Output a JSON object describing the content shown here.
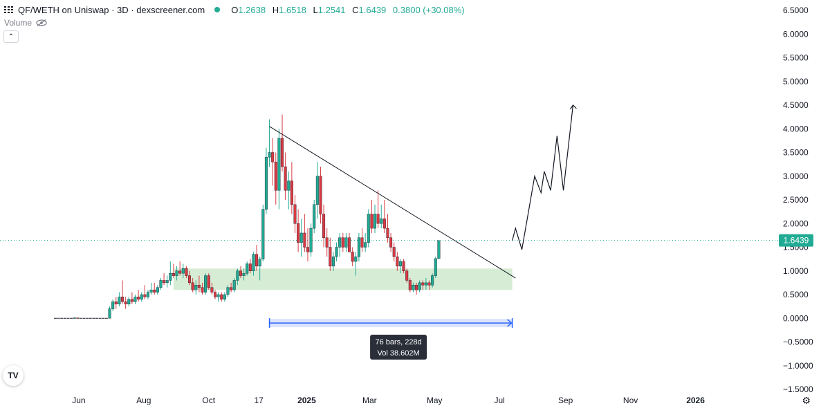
{
  "header": {
    "title": "QF/WETH on Uniswap · 3D · dexscreener.com",
    "ohlc": {
      "o_label": "O",
      "o": "1.2638",
      "h_label": "H",
      "h": "1.6518",
      "l_label": "L",
      "l": "1.2541",
      "c_label": "C",
      "c": "1.6439",
      "change": "0.3800 (+30.08%)"
    }
  },
  "indicator": {
    "volume_label": "Volume"
  },
  "logo": {
    "text": "TV"
  },
  "colors": {
    "up": "#22ab94",
    "down": "#d93a43",
    "zone": "#d6ecd4",
    "range_fill": "#dbe4fc",
    "range_line": "#2962ff",
    "price_tag": "#22ab94",
    "tooltip_bg": "#2a2e39"
  },
  "chart_data": {
    "type": "candlestick",
    "title": "QF/WETH on Uniswap · 3D · dexscreener.com",
    "ylim": [
      -1.5,
      6.5
    ],
    "y_ticks": [
      "6.5000",
      "6.0000",
      "5.5000",
      "5.0000",
      "4.5000",
      "4.0000",
      "3.5000",
      "3.0000",
      "2.5000",
      "2.0000",
      "1.5000",
      "1.0000",
      "0.5000",
      "0.0000",
      "−0.5000",
      "−1.0000",
      "−1.5000"
    ],
    "x_ticks": [
      "Jun",
      "Aug",
      "Oct",
      "17",
      "2025",
      "Mar",
      "May",
      "Jul",
      "Sep",
      "Nov",
      "2026"
    ],
    "x_tick_dates": [
      "2024-06-01",
      "2024-08-01",
      "2024-10-01",
      "2024-11-17",
      "2025-01-01",
      "2025-03-01",
      "2025-05-01",
      "2025-07-01",
      "2025-09-01",
      "2025-11-01",
      "2026-01-01"
    ],
    "last_price": "1.6439",
    "candles": [
      [
        0.0,
        0.0,
        0.0,
        0.0
      ],
      [
        0.0,
        0.0,
        0.0,
        0.0
      ],
      [
        0.0,
        0.0,
        0.0,
        0.0
      ],
      [
        0.0,
        0.0,
        0.0,
        0.0
      ],
      [
        0.0,
        0.0,
        0.0,
        0.0
      ],
      [
        0.0,
        0.0,
        0.0,
        0.0
      ],
      [
        0.0,
        0.02,
        0.0,
        0.01
      ],
      [
        0.01,
        0.0,
        0.0,
        0.0
      ],
      [
        0.0,
        0.0,
        0.0,
        0.0
      ],
      [
        0.0,
        0.0,
        0.0,
        0.0
      ],
      [
        0.0,
        0.0,
        0.0,
        0.0
      ],
      [
        0.0,
        0.0,
        0.0,
        0.0
      ],
      [
        0.0,
        0.0,
        0.0,
        0.0
      ],
      [
        0.0,
        0.0,
        0.0,
        0.0
      ],
      [
        0.0,
        0.0,
        0.0,
        0.0
      ],
      [
        0.0,
        0.0,
        0.0,
        0.0
      ],
      [
        0.0,
        0.0,
        0.0,
        0.0
      ],
      [
        0.0,
        0.25,
        0.0,
        0.2
      ],
      [
        0.2,
        0.4,
        0.15,
        0.35
      ],
      [
        0.35,
        0.45,
        0.2,
        0.3
      ],
      [
        0.3,
        0.55,
        0.25,
        0.45
      ],
      [
        0.45,
        0.8,
        0.3,
        0.35
      ],
      [
        0.35,
        0.45,
        0.2,
        0.3
      ],
      [
        0.3,
        0.45,
        0.25,
        0.4
      ],
      [
        0.4,
        0.55,
        0.3,
        0.35
      ],
      [
        0.35,
        0.5,
        0.3,
        0.45
      ],
      [
        0.45,
        0.6,
        0.35,
        0.4
      ],
      [
        0.4,
        0.55,
        0.35,
        0.5
      ],
      [
        0.5,
        0.7,
        0.4,
        0.45
      ],
      [
        0.45,
        0.6,
        0.4,
        0.55
      ],
      [
        0.55,
        0.75,
        0.5,
        0.6
      ],
      [
        0.6,
        0.75,
        0.5,
        0.55
      ],
      [
        0.55,
        0.7,
        0.5,
        0.65
      ],
      [
        0.65,
        0.85,
        0.6,
        0.8
      ],
      [
        0.8,
        0.95,
        0.7,
        0.75
      ],
      [
        0.75,
        0.9,
        0.65,
        0.8
      ],
      [
        0.8,
        1.2,
        0.7,
        0.95
      ],
      [
        0.95,
        1.15,
        0.85,
        0.9
      ],
      [
        0.9,
        1.1,
        0.8,
        1.0
      ],
      [
        1.0,
        1.2,
        0.9,
        0.95
      ],
      [
        0.95,
        1.15,
        0.85,
        1.05
      ],
      [
        1.05,
        1.1,
        0.85,
        0.9
      ],
      [
        0.9,
        1.0,
        0.7,
        0.75
      ],
      [
        0.75,
        0.85,
        0.55,
        0.6
      ],
      [
        0.6,
        0.8,
        0.5,
        0.7
      ],
      [
        0.7,
        0.9,
        0.55,
        0.65
      ],
      [
        0.65,
        0.75,
        0.5,
        0.55
      ],
      [
        0.55,
        0.95,
        0.5,
        0.9
      ],
      [
        0.9,
        0.95,
        0.6,
        0.65
      ],
      [
        0.65,
        0.75,
        0.5,
        0.55
      ],
      [
        0.55,
        0.6,
        0.4,
        0.45
      ],
      [
        0.45,
        0.55,
        0.35,
        0.5
      ],
      [
        0.5,
        0.55,
        0.35,
        0.4
      ],
      [
        0.4,
        0.55,
        0.35,
        0.5
      ],
      [
        0.5,
        0.7,
        0.45,
        0.65
      ],
      [
        0.65,
        0.75,
        0.55,
        0.6
      ],
      [
        0.6,
        0.85,
        0.55,
        0.8
      ],
      [
        0.8,
        1.05,
        0.7,
        1.0
      ],
      [
        1.0,
        1.1,
        0.85,
        0.9
      ],
      [
        0.9,
        1.05,
        0.8,
        0.95
      ],
      [
        0.95,
        1.2,
        0.9,
        1.15
      ],
      [
        1.15,
        1.25,
        0.95,
        1.0
      ],
      [
        1.0,
        1.4,
        0.9,
        1.35
      ],
      [
        1.35,
        1.55,
        1.0,
        1.1
      ],
      [
        1.1,
        1.3,
        0.8,
        1.25
      ],
      [
        1.25,
        2.4,
        1.2,
        2.3
      ],
      [
        2.3,
        3.6,
        2.2,
        3.4
      ],
      [
        3.4,
        4.2,
        3.2,
        3.5
      ],
      [
        3.5,
        3.8,
        2.8,
        3.3
      ],
      [
        3.3,
        3.5,
        2.4,
        2.7
      ],
      [
        2.7,
        4.0,
        2.3,
        3.8
      ],
      [
        3.8,
        4.3,
        3.1,
        3.2
      ],
      [
        3.2,
        3.5,
        2.5,
        2.7
      ],
      [
        2.7,
        3.1,
        2.3,
        2.9
      ],
      [
        2.9,
        3.3,
        2.2,
        2.4
      ],
      [
        2.4,
        2.6,
        1.8,
        2.0
      ],
      [
        2.0,
        2.3,
        1.4,
        1.6
      ],
      [
        1.6,
        2.1,
        1.3,
        1.8
      ],
      [
        1.8,
        2.2,
        1.4,
        1.5
      ],
      [
        1.5,
        1.9,
        1.2,
        1.4
      ],
      [
        1.4,
        2.0,
        1.3,
        1.9
      ],
      [
        1.9,
        2.5,
        1.8,
        2.4
      ],
      [
        2.4,
        3.3,
        2.1,
        3.0
      ],
      [
        3.0,
        3.2,
        2.0,
        2.2
      ],
      [
        2.2,
        2.4,
        1.5,
        1.7
      ],
      [
        1.7,
        1.9,
        1.3,
        1.5
      ],
      [
        1.5,
        1.7,
        1.0,
        1.1
      ],
      [
        1.1,
        1.4,
        1.0,
        1.3
      ],
      [
        1.3,
        1.6,
        1.2,
        1.5
      ],
      [
        1.5,
        1.8,
        1.3,
        1.7
      ],
      [
        1.7,
        1.8,
        1.4,
        1.5
      ],
      [
        1.5,
        1.8,
        1.4,
        1.7
      ],
      [
        1.7,
        1.8,
        1.4,
        1.4
      ],
      [
        1.4,
        1.5,
        1.1,
        1.2
      ],
      [
        1.2,
        1.4,
        0.9,
        1.3
      ],
      [
        1.3,
        1.8,
        1.2,
        1.7
      ],
      [
        1.7,
        1.9,
        1.4,
        1.5
      ],
      [
        1.5,
        1.8,
        1.4,
        1.6
      ],
      [
        1.6,
        2.3,
        1.5,
        2.2
      ],
      [
        2.2,
        2.5,
        1.8,
        1.9
      ],
      [
        1.9,
        2.4,
        1.8,
        2.2
      ],
      [
        2.2,
        2.7,
        1.9,
        2.0
      ],
      [
        2.0,
        2.4,
        1.9,
        2.1
      ],
      [
        2.1,
        2.5,
        1.8,
        1.9
      ],
      [
        1.9,
        2.2,
        1.6,
        1.7
      ],
      [
        1.7,
        1.8,
        1.4,
        1.5
      ],
      [
        1.5,
        1.6,
        1.2,
        1.3
      ],
      [
        1.3,
        1.4,
        1.0,
        1.1
      ],
      [
        1.1,
        1.25,
        0.95,
        1.2
      ],
      [
        1.2,
        1.25,
        0.95,
        1.0
      ],
      [
        1.0,
        1.05,
        0.75,
        0.8
      ],
      [
        0.8,
        0.85,
        0.55,
        0.6
      ],
      [
        0.6,
        0.75,
        0.55,
        0.7
      ],
      [
        0.7,
        0.75,
        0.5,
        0.6
      ],
      [
        0.6,
        0.8,
        0.55,
        0.75
      ],
      [
        0.75,
        0.8,
        0.6,
        0.7
      ],
      [
        0.7,
        0.85,
        0.6,
        0.75
      ],
      [
        0.75,
        0.8,
        0.6,
        0.7
      ],
      [
        0.7,
        0.95,
        0.65,
        0.9
      ],
      [
        0.9,
        1.3,
        0.85,
        1.26
      ],
      [
        1.26,
        1.65,
        1.25,
        1.64
      ]
    ],
    "trendline": {
      "from": [
        67,
        4.05
      ],
      "to": [
        144,
        0.85
      ]
    },
    "support_zone": {
      "x_from": 37,
      "x_to": 143,
      "low": 0.6,
      "high": 1.05
    },
    "date_range": {
      "x_from": 67,
      "x_to": 143,
      "y": -0.1
    },
    "projection": [
      [
        143,
        1.64
      ],
      [
        144,
        1.9
      ],
      [
        146,
        1.45
      ],
      [
        150,
        3.0
      ],
      [
        152,
        2.65
      ],
      [
        153,
        3.1
      ],
      [
        155,
        2.7
      ],
      [
        157,
        3.85
      ],
      [
        159,
        2.7
      ],
      [
        162,
        4.5
      ]
    ]
  },
  "tooltip": {
    "line1": "76 bars, 228d",
    "line2": "Vol 38.602M"
  }
}
